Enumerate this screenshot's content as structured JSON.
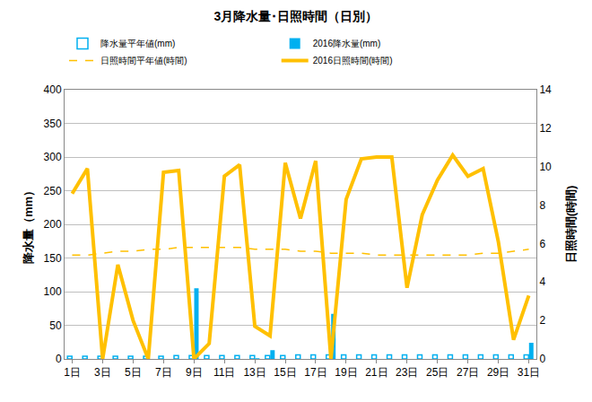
{
  "chart_data": {
    "type": "bar",
    "title": "3月降水量･日照時間（日別）",
    "y_label": "降水量（mm）",
    "y2_label": "日照時間(時間)",
    "categories": [
      "1日",
      null,
      "3日",
      null,
      "5日",
      null,
      "7日",
      null,
      "9日",
      null,
      "11日",
      null,
      "13日",
      null,
      "15日",
      null,
      "17日",
      null,
      "19日",
      null,
      "21日",
      null,
      "23日",
      null,
      "25日",
      null,
      "27日",
      null,
      "29日",
      null,
      "31日"
    ],
    "ylim": [
      0,
      400
    ],
    "yticks": [
      0,
      50,
      100,
      150,
      200,
      250,
      300,
      350,
      400
    ],
    "y2lim": [
      0,
      14
    ],
    "y2ticks": [
      0,
      2,
      4,
      6,
      8,
      10,
      12,
      14
    ],
    "grid": true,
    "legend": "top",
    "series": [
      {
        "name": "降水量平年値(mm)",
        "type": "bar",
        "color": "#00b0f0",
        "marker": "hollow",
        "values": [
          4,
          4,
          4,
          4,
          4,
          4,
          4,
          5,
          5,
          5,
          5,
          5,
          5,
          5,
          5,
          6,
          6,
          6,
          6,
          6,
          6,
          6,
          6,
          6,
          6,
          6,
          6,
          6,
          6,
          6,
          6
        ]
      },
      {
        "name": "2016降水量(mm)",
        "type": "bar",
        "color": "#00b0f0",
        "values": [
          0,
          0,
          0,
          0,
          0,
          0,
          0,
          0,
          105,
          0,
          0,
          0,
          1,
          13,
          0,
          0,
          0,
          67,
          0,
          0,
          0,
          0,
          0,
          0,
          0,
          0,
          0,
          0,
          0,
          0,
          24
        ]
      },
      {
        "name": "日照時間平年値(時間)",
        "type": "line",
        "axis": "y2",
        "color": "#ffc000",
        "line_style": "dashed",
        "values": [
          5.4,
          5.4,
          5.5,
          5.6,
          5.6,
          5.7,
          5.7,
          5.8,
          5.8,
          5.8,
          5.8,
          5.8,
          5.7,
          5.7,
          5.7,
          5.6,
          5.6,
          5.5,
          5.5,
          5.5,
          5.4,
          5.4,
          5.4,
          5.4,
          5.4,
          5.4,
          5.4,
          5.5,
          5.5,
          5.6,
          5.7
        ]
      },
      {
        "name": "2016日照時間(時間)",
        "type": "line",
        "axis": "y2",
        "color": "#ffc000",
        "line_style": "solid",
        "values": [
          8.6,
          9.9,
          0,
          4.9,
          2.0,
          0,
          9.7,
          9.8,
          0,
          0.8,
          9.5,
          10.1,
          1.7,
          1.2,
          10.2,
          7.3,
          10.3,
          0,
          8.3,
          10.4,
          10.5,
          10.5,
          3.7,
          7.5,
          9.3,
          10.6,
          9.5,
          9.9,
          6.1,
          1.0,
          3.3
        ]
      }
    ]
  }
}
